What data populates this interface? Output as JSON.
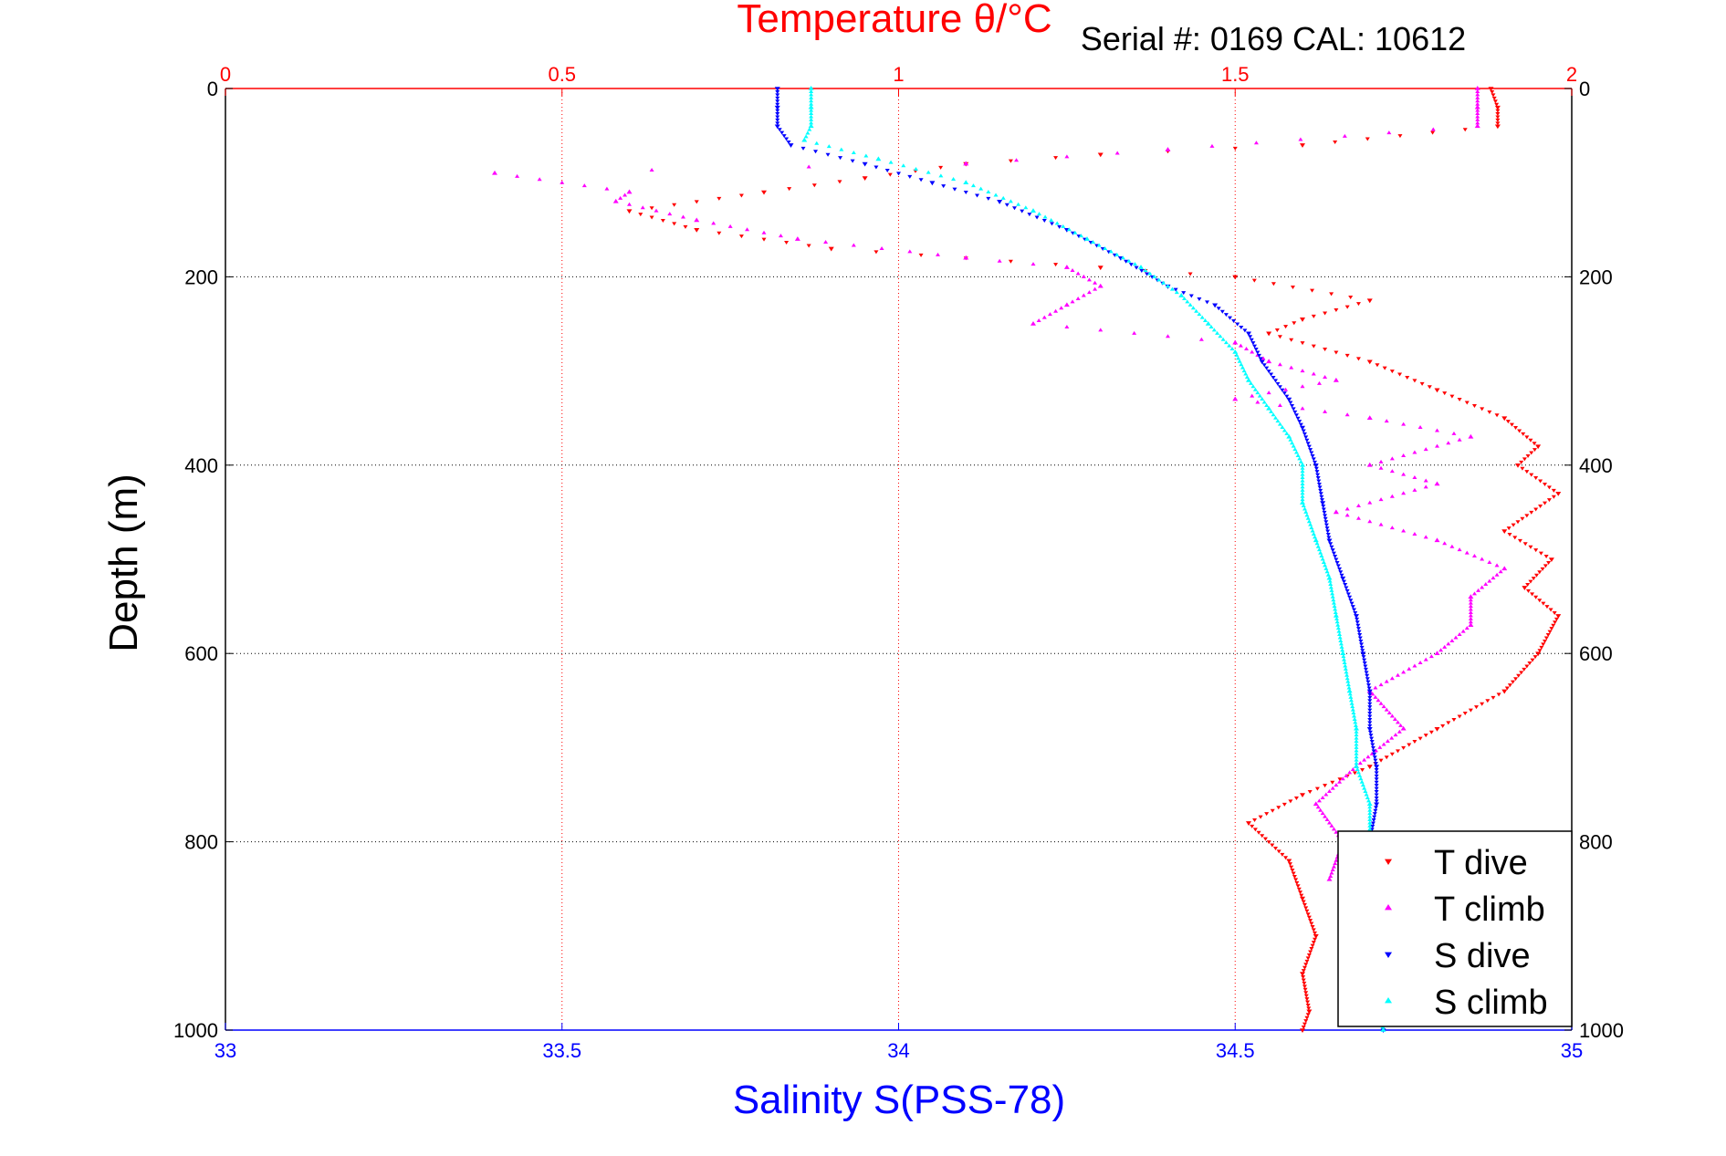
{
  "chart_data": {
    "type": "scatter",
    "title_top": "Temperature θ/°C",
    "subtitle": "Serial #: 0169 CAL: 10612",
    "xlabel_bottom": "Salinity S(PSS-78)",
    "ylabel": "Depth (m)",
    "x_bottom": {
      "lim": [
        33,
        35
      ],
      "ticks": [
        "33",
        "33.5",
        "34",
        "34.5",
        "35"
      ]
    },
    "x_top": {
      "lim": [
        0,
        2
      ],
      "ticks": [
        "0",
        "0.5",
        "1",
        "1.5",
        "2"
      ]
    },
    "y": {
      "lim": [
        0,
        1000
      ],
      "reversed": true,
      "ticks": [
        "0",
        "200",
        "400",
        "600",
        "800",
        "1000"
      ]
    },
    "grid": true,
    "legend": {
      "position": "bottom-right",
      "entries": [
        "T dive",
        "T climb",
        "S dive",
        "S climb"
      ]
    },
    "colors": {
      "t_dive": "#ff0000",
      "t_climb": "#ff00ff",
      "s_dive": "#0000ff",
      "s_climb": "#00ffff",
      "top_axis": "#ff0000",
      "bottom_axis": "#0000ff"
    },
    "series": [
      {
        "name": "T dive",
        "axis": "top",
        "marker": "triangle-down",
        "points": [
          [
            1.88,
            0
          ],
          [
            1.89,
            20
          ],
          [
            1.89,
            40
          ],
          [
            1.6,
            60
          ],
          [
            1.3,
            70
          ],
          [
            1.1,
            80
          ],
          [
            0.95,
            95
          ],
          [
            0.8,
            110
          ],
          [
            0.6,
            130
          ],
          [
            0.7,
            150
          ],
          [
            0.9,
            170
          ],
          [
            1.3,
            190
          ],
          [
            1.5,
            200
          ],
          [
            1.7,
            225
          ],
          [
            1.6,
            245
          ],
          [
            1.55,
            260
          ],
          [
            1.7,
            290
          ],
          [
            1.8,
            320
          ],
          [
            1.9,
            350
          ],
          [
            1.95,
            380
          ],
          [
            1.92,
            400
          ],
          [
            1.98,
            430
          ],
          [
            1.9,
            470
          ],
          [
            1.97,
            500
          ],
          [
            1.93,
            530
          ],
          [
            1.98,
            560
          ],
          [
            1.95,
            600
          ],
          [
            1.9,
            640
          ],
          [
            1.8,
            680
          ],
          [
            1.7,
            720
          ],
          [
            1.6,
            750
          ],
          [
            1.52,
            780
          ],
          [
            1.58,
            820
          ],
          [
            1.6,
            860
          ],
          [
            1.62,
            900
          ],
          [
            1.6,
            940
          ],
          [
            1.61,
            980
          ],
          [
            1.6,
            1000
          ]
        ]
      },
      {
        "name": "T climb",
        "axis": "top",
        "marker": "triangle-up",
        "points": [
          [
            1.86,
            0
          ],
          [
            1.86,
            20
          ],
          [
            1.86,
            40
          ],
          [
            1.4,
            65
          ],
          [
            1.1,
            80
          ],
          [
            0.4,
            90
          ],
          [
            0.6,
            110
          ],
          [
            0.58,
            120
          ],
          [
            0.7,
            140
          ],
          [
            0.85,
            160
          ],
          [
            1.1,
            180
          ],
          [
            1.25,
            190
          ],
          [
            1.3,
            210
          ],
          [
            1.25,
            230
          ],
          [
            1.2,
            250
          ],
          [
            1.5,
            270
          ],
          [
            1.55,
            290
          ],
          [
            1.65,
            310
          ],
          [
            1.5,
            330
          ],
          [
            1.7,
            350
          ],
          [
            1.85,
            370
          ],
          [
            1.7,
            400
          ],
          [
            1.8,
            420
          ],
          [
            1.65,
            450
          ],
          [
            1.8,
            480
          ],
          [
            1.9,
            510
          ],
          [
            1.85,
            540
          ],
          [
            1.85,
            570
          ],
          [
            1.8,
            600
          ],
          [
            1.7,
            640
          ],
          [
            1.75,
            680
          ],
          [
            1.68,
            720
          ],
          [
            1.62,
            760
          ],
          [
            1.66,
            800
          ],
          [
            1.64,
            840
          ]
        ]
      },
      {
        "name": "S dive",
        "axis": "bottom",
        "marker": "triangle-down",
        "points": [
          [
            33.82,
            0
          ],
          [
            33.82,
            20
          ],
          [
            33.82,
            40
          ],
          [
            33.84,
            60
          ],
          [
            33.95,
            80
          ],
          [
            34.05,
            100
          ],
          [
            34.15,
            120
          ],
          [
            34.25,
            150
          ],
          [
            34.33,
            180
          ],
          [
            34.4,
            210
          ],
          [
            34.47,
            230
          ],
          [
            34.52,
            260
          ],
          [
            34.54,
            290
          ],
          [
            34.58,
            330
          ],
          [
            34.6,
            360
          ],
          [
            34.62,
            400
          ],
          [
            34.63,
            440
          ],
          [
            34.64,
            480
          ],
          [
            34.66,
            520
          ],
          [
            34.68,
            560
          ],
          [
            34.69,
            600
          ],
          [
            34.7,
            640
          ],
          [
            34.7,
            680
          ],
          [
            34.71,
            720
          ],
          [
            34.71,
            760
          ],
          [
            34.7,
            800
          ],
          [
            34.7,
            850
          ],
          [
            34.7,
            900
          ],
          [
            34.71,
            950
          ],
          [
            34.72,
            1000
          ]
        ]
      },
      {
        "name": "S climb",
        "axis": "bottom",
        "marker": "triangle-up",
        "points": [
          [
            33.87,
            0
          ],
          [
            33.87,
            20
          ],
          [
            33.87,
            40
          ],
          [
            33.86,
            55
          ],
          [
            33.97,
            75
          ],
          [
            34.1,
            100
          ],
          [
            34.2,
            130
          ],
          [
            34.28,
            160
          ],
          [
            34.36,
            190
          ],
          [
            34.42,
            220
          ],
          [
            34.46,
            250
          ],
          [
            34.5,
            280
          ],
          [
            34.52,
            310
          ],
          [
            34.55,
            340
          ],
          [
            34.58,
            370
          ],
          [
            34.6,
            400
          ],
          [
            34.6,
            440
          ],
          [
            34.62,
            480
          ],
          [
            34.64,
            520
          ],
          [
            34.65,
            560
          ],
          [
            34.66,
            600
          ],
          [
            34.67,
            640
          ],
          [
            34.68,
            680
          ],
          [
            34.68,
            720
          ],
          [
            34.7,
            760
          ],
          [
            34.7,
            800
          ],
          [
            34.7,
            850
          ],
          [
            34.71,
            900
          ],
          [
            34.71,
            950
          ],
          [
            34.72,
            1000
          ]
        ]
      }
    ]
  }
}
